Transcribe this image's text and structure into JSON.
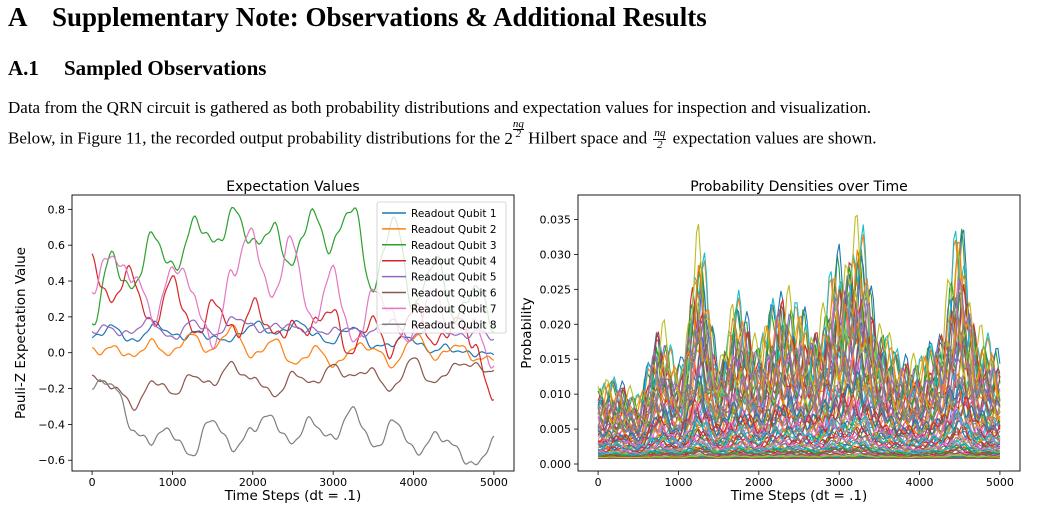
{
  "section": {
    "number": "A",
    "title": "Supplementary Note: Observations & Additional Results"
  },
  "subsection": {
    "number": "A.1",
    "title": "Sampled Observations"
  },
  "paragraph": {
    "line1": "Data from the QRN circuit is gathered as both probability distributions and expectation values for inspection and visualization.",
    "line2_a": "Below, in Figure 11, the recorded output probability distributions for the",
    "line2_b": "Hilbert space and",
    "line2_c": "expectation values are shown.",
    "math_base": "2",
    "math_exp": "nq/2",
    "frac_num": "nq",
    "frac_den": "2"
  },
  "chart_data": [
    {
      "type": "line",
      "title": "Expectation Values",
      "xlabel": "Time Steps (dt = .1)",
      "ylabel": "Pauli-Z Expectation Value",
      "xlim": [
        -250,
        5250
      ],
      "ylim": [
        -0.66,
        0.88
      ],
      "xticks": [
        0,
        1000,
        2000,
        3000,
        4000,
        5000
      ],
      "yticks": [
        -0.6,
        -0.4,
        -0.2,
        0.0,
        0.2,
        0.4,
        0.6,
        0.8
      ],
      "ytick_labels": [
        "−0.6",
        "−0.4",
        "−0.2",
        "0.0",
        "0.2",
        "0.4",
        "0.6",
        "0.8"
      ],
      "legend_position": "upper right",
      "series": [
        {
          "name": "Readout Qubit 1",
          "color": "#1f77b4",
          "x": [
            0,
            250,
            500,
            750,
            1000,
            1250,
            1500,
            1750,
            2000,
            2250,
            2500,
            2750,
            3000,
            3250,
            3500,
            3750,
            4000,
            4250,
            4500,
            4750,
            5000
          ],
          "y": [
            0.1,
            0.12,
            0.08,
            0.14,
            0.1,
            0.12,
            0.06,
            0.1,
            0.14,
            0.12,
            0.16,
            0.1,
            0.08,
            0.12,
            0.06,
            0.04,
            0.08,
            0.02,
            0.0,
            0.02,
            -0.03
          ]
        },
        {
          "name": "Readout Qubit 2",
          "color": "#ff7f0e",
          "x": [
            0,
            250,
            500,
            750,
            1000,
            1250,
            1500,
            1750,
            2000,
            2250,
            2500,
            2750,
            3000,
            3250,
            3500,
            3750,
            4000,
            4250,
            4500,
            4750,
            5000
          ],
          "y": [
            0.0,
            0.05,
            -0.05,
            0.08,
            -0.02,
            0.1,
            0.02,
            0.12,
            0.0,
            0.05,
            -0.05,
            0.02,
            -0.08,
            0.05,
            0.0,
            -0.05,
            0.08,
            -0.02,
            0.05,
            -0.05,
            0.0
          ]
        },
        {
          "name": "Readout Qubit 3",
          "color": "#2ca02c",
          "x": [
            0,
            250,
            500,
            750,
            1000,
            1250,
            1500,
            1750,
            2000,
            2250,
            2500,
            2750,
            3000,
            3250,
            3500,
            3750,
            4000,
            4250,
            4500,
            4750,
            5000
          ],
          "y": [
            0.15,
            0.5,
            0.4,
            0.6,
            0.5,
            0.7,
            0.6,
            0.82,
            0.55,
            0.75,
            0.45,
            0.8,
            0.6,
            0.78,
            0.4,
            0.7,
            0.3,
            0.5,
            0.2,
            0.4,
            0.1
          ]
        },
        {
          "name": "Readout Qubit 4",
          "color": "#d62728",
          "x": [
            0,
            250,
            500,
            750,
            1000,
            1250,
            1500,
            1750,
            2000,
            2250,
            2500,
            2750,
            3000,
            3250,
            3500,
            3750,
            4000,
            4250,
            4500,
            4750,
            5000
          ],
          "y": [
            0.55,
            0.3,
            0.4,
            0.2,
            0.35,
            0.15,
            0.25,
            0.1,
            0.3,
            0.05,
            0.2,
            0.1,
            0.25,
            0.0,
            0.15,
            0.05,
            0.2,
            0.1,
            0.15,
            0.05,
            -0.2
          ]
        },
        {
          "name": "Readout Qubit 5",
          "color": "#9467bd",
          "x": [
            0,
            250,
            500,
            750,
            1000,
            1250,
            1500,
            1750,
            2000,
            2250,
            2500,
            2750,
            3000,
            3250,
            3500,
            3750,
            4000,
            4250,
            4500,
            4750,
            5000
          ],
          "y": [
            0.1,
            0.14,
            0.12,
            0.16,
            0.1,
            0.15,
            0.12,
            0.18,
            0.14,
            0.16,
            0.12,
            0.15,
            0.1,
            0.14,
            0.12,
            0.16,
            0.1,
            0.14,
            0.12,
            0.1,
            0.08
          ]
        },
        {
          "name": "Readout Qubit 6",
          "color": "#8c564b",
          "x": [
            0,
            250,
            500,
            750,
            1000,
            1250,
            1500,
            1750,
            2000,
            2250,
            2500,
            2750,
            3000,
            3250,
            3500,
            3750,
            4000,
            4250,
            4500,
            4750,
            5000
          ],
          "y": [
            -0.1,
            -0.2,
            -0.3,
            -0.15,
            -0.25,
            -0.1,
            -0.2,
            -0.05,
            -0.15,
            -0.25,
            -0.1,
            -0.2,
            -0.05,
            -0.15,
            -0.1,
            -0.2,
            -0.05,
            -0.15,
            -0.1,
            -0.05,
            -0.1
          ]
        },
        {
          "name": "Readout Qubit 7",
          "color": "#e377c2",
          "x": [
            0,
            250,
            500,
            750,
            1000,
            1250,
            1500,
            1750,
            2000,
            2250,
            2500,
            2750,
            3000,
            3250,
            3500,
            3750,
            4000,
            4250,
            4500,
            4750,
            5000
          ],
          "y": [
            0.3,
            0.6,
            0.4,
            0.2,
            0.5,
            0.3,
            0.1,
            0.4,
            0.7,
            0.3,
            0.6,
            0.2,
            0.4,
            0.1,
            0.3,
            0.2,
            0.1,
            0.3,
            0.2,
            0.1,
            -0.05
          ]
        },
        {
          "name": "Readout Qubit 8",
          "color": "#7f7f7f",
          "x": [
            0,
            250,
            500,
            750,
            1000,
            1250,
            1500,
            1750,
            2000,
            2250,
            2500,
            2750,
            3000,
            3250,
            3500,
            3750,
            4000,
            4250,
            4500,
            4750,
            5000
          ],
          "y": [
            -0.15,
            -0.2,
            -0.4,
            -0.5,
            -0.45,
            -0.55,
            -0.4,
            -0.5,
            -0.45,
            -0.35,
            -0.5,
            -0.4,
            -0.45,
            -0.35,
            -0.5,
            -0.4,
            -0.55,
            -0.45,
            -0.55,
            -0.6,
            -0.52
          ]
        }
      ]
    },
    {
      "type": "line",
      "title": "Probability Densities over Time",
      "xlabel": "Time Steps (dt = .1)",
      "ylabel": "Probability",
      "xlim": [
        -250,
        5250
      ],
      "ylim": [
        -0.001,
        0.0385
      ],
      "xticks": [
        0,
        1000,
        2000,
        3000,
        4000,
        5000
      ],
      "yticks": [
        0.0,
        0.005,
        0.01,
        0.015,
        0.02,
        0.025,
        0.03,
        0.035
      ],
      "ytick_labels": [
        "0.000",
        "0.005",
        "0.010",
        "0.015",
        "0.020",
        "0.025",
        "0.030",
        "0.035"
      ],
      "series_count": 256,
      "envelope": {
        "x": [
          0,
          250,
          500,
          750,
          1000,
          1250,
          1500,
          1750,
          2000,
          2250,
          2500,
          2750,
          3000,
          3250,
          3500,
          3750,
          4000,
          4250,
          4500,
          4750,
          5000
        ],
        "upper": [
          0.012,
          0.013,
          0.01,
          0.022,
          0.015,
          0.035,
          0.017,
          0.026,
          0.019,
          0.028,
          0.024,
          0.022,
          0.033,
          0.037,
          0.022,
          0.017,
          0.016,
          0.021,
          0.037,
          0.02,
          0.017
        ],
        "lower": [
          0.0,
          0.0,
          0.0,
          0.0,
          0.0,
          0.0,
          0.0,
          0.0,
          0.0,
          0.0,
          0.0,
          0.0,
          0.0,
          0.0,
          0.0,
          0.0,
          0.0,
          0.0,
          0.0,
          0.0,
          0.0
        ]
      }
    }
  ]
}
